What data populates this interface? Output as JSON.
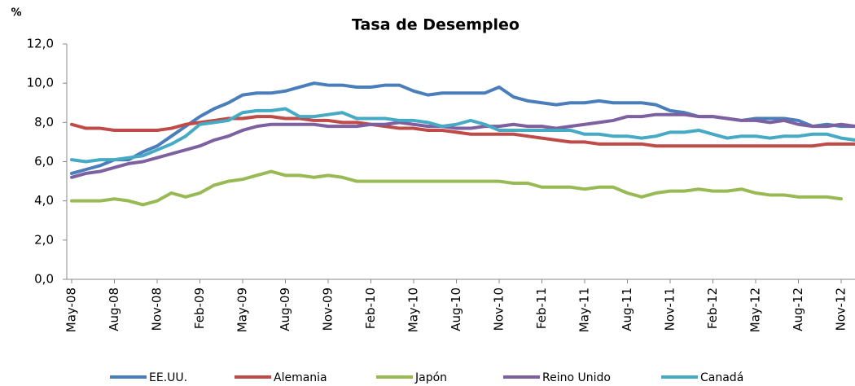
{
  "chart_data": {
    "type": "line",
    "title": "Tasa de Desempleo",
    "y_label": "%",
    "categories": [
      "May-08",
      null,
      null,
      "Aug-08",
      null,
      null,
      "Nov-08",
      null,
      null,
      "Feb-09",
      null,
      null,
      "May-09",
      null,
      null,
      "Aug-09",
      null,
      null,
      "Nov-09",
      null,
      null,
      "Feb-10",
      null,
      null,
      "May-10",
      null,
      null,
      "Aug-10",
      null,
      null,
      "Nov-10",
      null,
      null,
      "Feb-11",
      null,
      null,
      "May-11",
      null,
      null,
      "Aug-11",
      null,
      null,
      "Nov-11",
      null,
      null,
      "Feb-12",
      null,
      null,
      "May-12",
      null,
      null,
      "Aug-12",
      null,
      null,
      "Nov-12",
      null
    ],
    "series": [
      {
        "name": "EE.UU.",
        "color": "#4a7ebb",
        "values": [
          5.4,
          5.6,
          5.8,
          6.1,
          6.1,
          6.5,
          6.8,
          7.3,
          7.8,
          8.3,
          8.7,
          9.0,
          9.4,
          9.5,
          9.5,
          9.6,
          9.8,
          10.0,
          9.9,
          9.9,
          9.8,
          9.8,
          9.9,
          9.9,
          9.6,
          9.4,
          9.5,
          9.5,
          9.5,
          9.5,
          9.8,
          9.3,
          9.1,
          9.0,
          8.9,
          9.0,
          9.0,
          9.1,
          9.0,
          9.0,
          9.0,
          8.9,
          8.6,
          8.5,
          8.3,
          8.3,
          8.2,
          8.1,
          8.2,
          8.2,
          8.2,
          8.1,
          7.8,
          7.9,
          7.8,
          7.8
        ]
      },
      {
        "name": "Alemania",
        "color": "#be4b48",
        "values": [
          7.9,
          7.7,
          7.7,
          7.6,
          7.6,
          7.6,
          7.6,
          7.7,
          7.9,
          8.0,
          8.1,
          8.2,
          8.2,
          8.3,
          8.3,
          8.2,
          8.2,
          8.1,
          8.1,
          8.0,
          8.0,
          7.9,
          7.8,
          7.7,
          7.7,
          7.6,
          7.6,
          7.5,
          7.4,
          7.4,
          7.4,
          7.4,
          7.3,
          7.2,
          7.1,
          7.0,
          7.0,
          6.9,
          6.9,
          6.9,
          6.9,
          6.8,
          6.8,
          6.8,
          6.8,
          6.8,
          6.8,
          6.8,
          6.8,
          6.8,
          6.8,
          6.8,
          6.8,
          6.9,
          6.9,
          6.9
        ]
      },
      {
        "name": "Japón",
        "color": "#98b954",
        "values": [
          4.0,
          4.0,
          4.0,
          4.1,
          4.0,
          3.8,
          4.0,
          4.4,
          4.2,
          4.4,
          4.8,
          5.0,
          5.1,
          5.3,
          5.5,
          5.3,
          5.3,
          5.2,
          5.3,
          5.2,
          5.0,
          5.0,
          5.0,
          5.0,
          5.0,
          5.0,
          5.0,
          5.0,
          5.0,
          5.0,
          5.0,
          4.9,
          4.9,
          4.7,
          4.7,
          4.7,
          4.6,
          4.7,
          4.7,
          4.4,
          4.2,
          4.4,
          4.5,
          4.5,
          4.6,
          4.5,
          4.5,
          4.6,
          4.4,
          4.3,
          4.3,
          4.2,
          4.2,
          4.2,
          4.1,
          null
        ]
      },
      {
        "name": "Reino Unido",
        "color": "#7d60a0",
        "values": [
          5.2,
          5.4,
          5.5,
          5.7,
          5.9,
          6.0,
          6.2,
          6.4,
          6.6,
          6.8,
          7.1,
          7.3,
          7.6,
          7.8,
          7.9,
          7.9,
          7.9,
          7.9,
          7.8,
          7.8,
          7.8,
          7.9,
          7.9,
          8.0,
          7.9,
          7.8,
          7.8,
          7.7,
          7.7,
          7.8,
          7.8,
          7.9,
          7.8,
          7.8,
          7.7,
          7.8,
          7.9,
          8.0,
          8.1,
          8.3,
          8.3,
          8.4,
          8.4,
          8.4,
          8.3,
          8.3,
          8.2,
          8.1,
          8.1,
          8.0,
          8.1,
          7.9,
          7.8,
          7.8,
          7.9,
          7.8
        ]
      },
      {
        "name": "Canadá",
        "color": "#46aac5",
        "values": [
          6.1,
          6.0,
          6.1,
          6.1,
          6.2,
          6.3,
          6.6,
          6.9,
          7.3,
          7.9,
          8.0,
          8.1,
          8.5,
          8.6,
          8.6,
          8.7,
          8.3,
          8.3,
          8.4,
          8.5,
          8.2,
          8.2,
          8.2,
          8.1,
          8.1,
          8.0,
          7.8,
          7.9,
          8.1,
          7.9,
          7.6,
          7.6,
          7.6,
          7.6,
          7.6,
          7.6,
          7.4,
          7.4,
          7.3,
          7.3,
          7.2,
          7.3,
          7.5,
          7.5,
          7.6,
          7.4,
          7.2,
          7.3,
          7.3,
          7.2,
          7.3,
          7.3,
          7.4,
          7.4,
          7.2,
          7.1
        ]
      }
    ],
    "ylim": [
      0,
      12
    ],
    "yticks": [
      {
        "value": 0,
        "label": "0,0"
      },
      {
        "value": 2,
        "label": "2,0"
      },
      {
        "value": 4,
        "label": "4,0"
      },
      {
        "value": 6,
        "label": "6,0"
      },
      {
        "value": 8,
        "label": "8,0"
      },
      {
        "value": 10,
        "label": "10,0"
      },
      {
        "value": 12,
        "label": "12,0"
      }
    ],
    "grid": false,
    "legend": "bottom"
  }
}
